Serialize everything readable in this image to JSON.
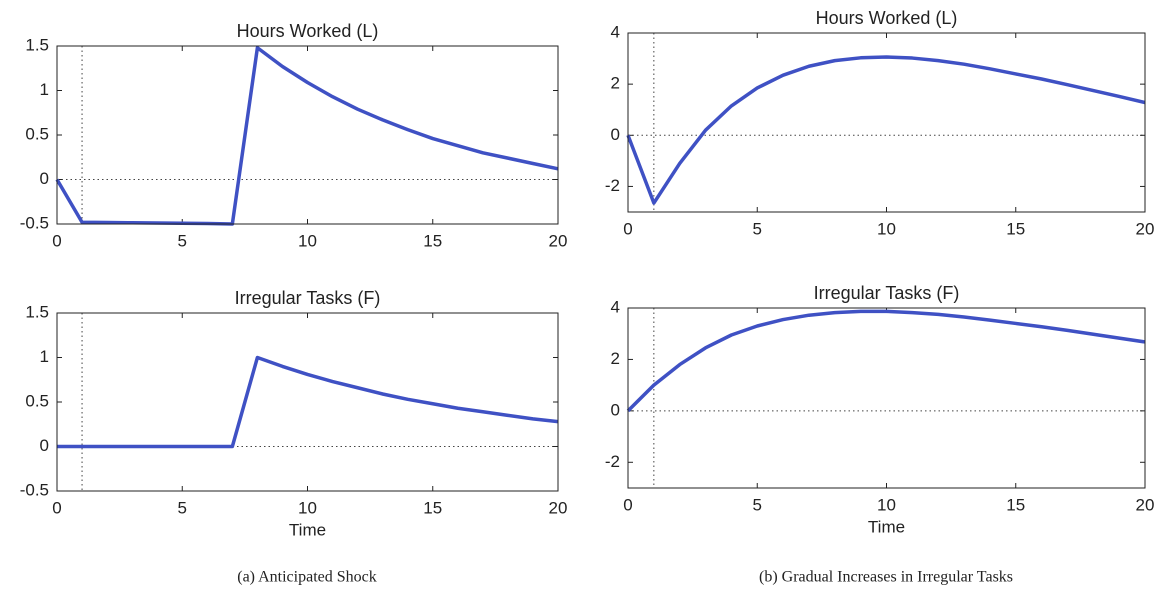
{
  "chart_data": [
    {
      "type": "line",
      "title": "Hours Worked (L)",
      "x": [
        0,
        1,
        2,
        3,
        4,
        5,
        6,
        7,
        8,
        9,
        10,
        11,
        12,
        13,
        14,
        15,
        16,
        17,
        18,
        19,
        20
      ],
      "series": [
        {
          "color": "#3f51c4",
          "values": [
            0,
            -0.48,
            -0.483,
            -0.486,
            -0.489,
            -0.492,
            -0.495,
            -0.5,
            1.48,
            1.27,
            1.09,
            0.93,
            0.79,
            0.67,
            0.56,
            0.46,
            0.38,
            0.3,
            0.24,
            0.18,
            0.12
          ]
        }
      ],
      "xlim": [
        0,
        20
      ],
      "xticks": [
        0,
        5,
        10,
        15,
        20
      ],
      "ylim": [
        -0.5,
        1.5
      ],
      "yticks": [
        -0.5,
        0,
        0.5,
        1,
        1.5
      ],
      "vline": 1,
      "hline": 0
    },
    {
      "type": "line",
      "title": "Irregular Tasks (F)",
      "xlabel": "Time",
      "x": [
        0,
        1,
        2,
        3,
        4,
        5,
        6,
        7,
        8,
        9,
        10,
        11,
        12,
        13,
        14,
        15,
        16,
        17,
        18,
        19,
        20
      ],
      "series": [
        {
          "color": "#3f51c4",
          "values": [
            0,
            0,
            0,
            0,
            0,
            0,
            0,
            0,
            1.0,
            0.9,
            0.81,
            0.73,
            0.66,
            0.59,
            0.53,
            0.48,
            0.43,
            0.39,
            0.35,
            0.31,
            0.28
          ]
        }
      ],
      "xlim": [
        0,
        20
      ],
      "xticks": [
        0,
        5,
        10,
        15,
        20
      ],
      "ylim": [
        -0.5,
        1.5
      ],
      "yticks": [
        -0.5,
        0,
        0.5,
        1,
        1.5
      ],
      "vline": 1,
      "hline": 0
    },
    {
      "type": "line",
      "title": "Hours Worked (L)",
      "x": [
        0,
        1,
        2,
        3,
        4,
        5,
        6,
        7,
        8,
        9,
        10,
        11,
        12,
        13,
        14,
        15,
        16,
        17,
        18,
        19,
        20
      ],
      "series": [
        {
          "color": "#3f51c4",
          "values": [
            0,
            -2.65,
            -1.1,
            0.2,
            1.15,
            1.85,
            2.35,
            2.7,
            2.92,
            3.03,
            3.06,
            3.02,
            2.92,
            2.78,
            2.6,
            2.4,
            2.2,
            1.98,
            1.75,
            1.52,
            1.28
          ]
        }
      ],
      "xlim": [
        0,
        20
      ],
      "xticks": [
        0,
        5,
        10,
        15,
        20
      ],
      "ylim": [
        -3,
        4
      ],
      "yticks": [
        -2,
        0,
        2,
        4
      ],
      "vline": 1,
      "hline": 0
    },
    {
      "type": "line",
      "title": "Irregular Tasks (F)",
      "xlabel": "Time",
      "x": [
        0,
        1,
        2,
        3,
        4,
        5,
        6,
        7,
        8,
        9,
        10,
        11,
        12,
        13,
        14,
        15,
        16,
        17,
        18,
        19,
        20
      ],
      "series": [
        {
          "color": "#3f51c4",
          "values": [
            0,
            1.0,
            1.8,
            2.45,
            2.95,
            3.3,
            3.55,
            3.72,
            3.82,
            3.87,
            3.87,
            3.82,
            3.75,
            3.65,
            3.53,
            3.4,
            3.27,
            3.13,
            2.98,
            2.83,
            2.68
          ]
        }
      ],
      "xlim": [
        0,
        20
      ],
      "xticks": [
        0,
        5,
        10,
        15,
        20
      ],
      "ylim": [
        -3,
        4
      ],
      "yticks": [
        -2,
        0,
        2,
        4
      ],
      "vline": 1,
      "hline": 0
    }
  ],
  "captions": [
    "(a) Anticipated Shock",
    "(b) Gradual Increases in Irregular Tasks"
  ]
}
